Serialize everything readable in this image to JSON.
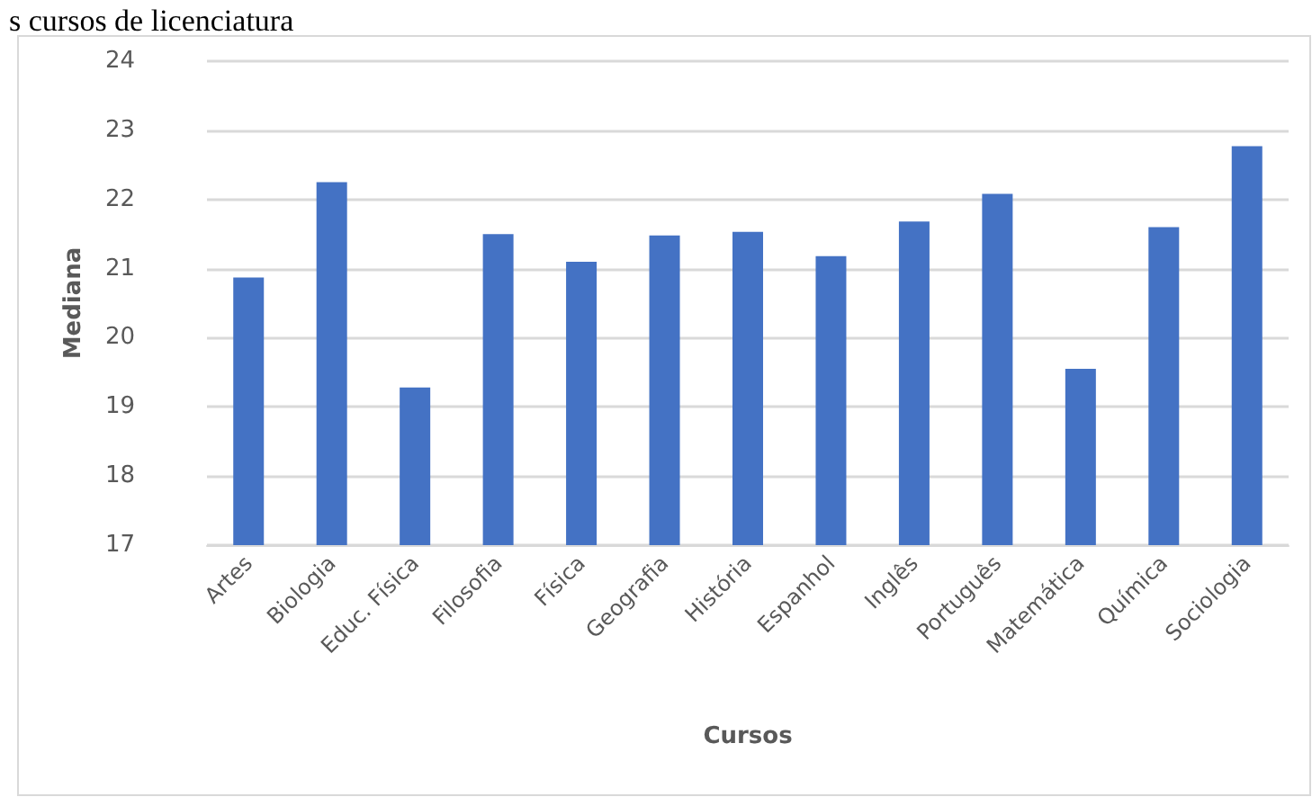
{
  "chart_data": {
    "type": "bar",
    "title": "s cursos de licenciatura",
    "xlabel": "Cursos",
    "ylabel": "Mediana",
    "categories": [
      "Artes",
      "Biologia",
      "Educ. Física",
      "Filosofia",
      "Física",
      "Geografia",
      "História",
      "Espanhol",
      "Inglês",
      "Português",
      "Matemática",
      "Química",
      "Sociologia"
    ],
    "values": [
      20.87,
      22.25,
      19.28,
      21.5,
      21.1,
      21.48,
      21.53,
      21.18,
      21.68,
      22.08,
      19.55,
      21.6,
      22.77
    ],
    "color": "#4472c4",
    "ylim": [
      17,
      24
    ],
    "yticks": [
      17,
      18,
      19,
      20,
      21,
      22,
      23,
      24
    ],
    "grid": "y"
  }
}
